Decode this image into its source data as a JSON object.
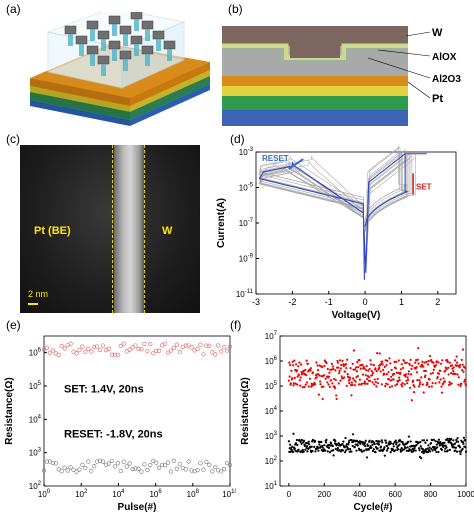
{
  "panel_labels": {
    "a": "(a)",
    "b": "(b)",
    "c": "(c)",
    "d": "(d)",
    "e": "(e)",
    "f": "(f)"
  },
  "panel_b": {
    "layers": [
      "W",
      "AlOX",
      "Al2O3",
      "Pt"
    ]
  },
  "panel_c": {
    "left_label": "Pt (BE)",
    "right_label": "W",
    "scale": "2 nm"
  },
  "chart_data": [
    {
      "id": "d",
      "type": "line",
      "xlabel": "Voltage(V)",
      "ylabel": "Current(A)",
      "xlim": [
        -3,
        2.5
      ],
      "ylim_log": [
        -11,
        -3
      ],
      "xticks": [
        "-3",
        "-2",
        "-1",
        "0",
        "1",
        "2"
      ],
      "yticks": [
        "10-11",
        "10-9",
        "10-7",
        "10-5",
        "10-3"
      ],
      "annotations": [
        "RESET",
        "SET"
      ],
      "compliance_A": 0.0008,
      "reset_voltage_V": -2.0,
      "set_voltage_V": 1.1
    },
    {
      "id": "e",
      "type": "scatter",
      "xlabel": "Pulse(#)",
      "ylabel": "Resistance(Ω)",
      "xscale": "log",
      "yscale": "log",
      "xlim_log": [
        0,
        10
      ],
      "ylim_log": [
        2,
        6.5
      ],
      "xticks": [
        "10^0",
        "10^2",
        "10^4",
        "10^6",
        "10^8",
        "10^10"
      ],
      "yticks": [
        "10^2",
        "10^3",
        "10^4",
        "10^5",
        "10^6"
      ],
      "annotations": [
        "SET: 1.4V, 20ns",
        "RESET: -1.8V, 20ns"
      ],
      "series": [
        {
          "color": "#e06060",
          "approx_log_resistance": 6.1
        },
        {
          "color": "#777777",
          "approx_log_resistance": 2.6
        }
      ]
    },
    {
      "id": "f",
      "type": "scatter",
      "xlabel": "Cycle(#)",
      "ylabel": "Resistance(Ω)",
      "xlim": [
        -50,
        1000
      ],
      "yscale": "log",
      "ylim_log": [
        1,
        7
      ],
      "xticks": [
        "0",
        "200",
        "400",
        "600",
        "800",
        "1000"
      ],
      "yticks": [
        "10^1",
        "10^2",
        "10^3",
        "10^4",
        "10^5",
        "10^6",
        "10^7"
      ],
      "series": [
        {
          "color": "#ee0000",
          "approx_log_resistance": 5.5
        },
        {
          "color": "#000000",
          "approx_log_resistance": 2.6
        }
      ]
    }
  ]
}
